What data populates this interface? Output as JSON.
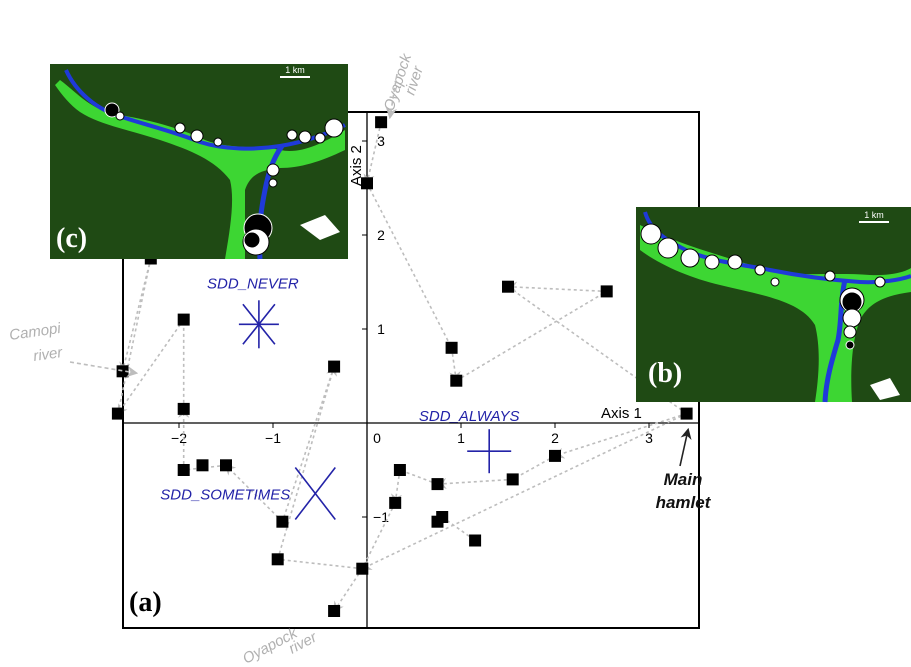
{
  "chart_data": {
    "type": "scatter",
    "xlabel": "Axis 1",
    "ylabel": "Axis 2",
    "xlim": [
      -2.7,
      3.45
    ],
    "ylim": [
      -2.15,
      3.35
    ],
    "x_ticks": [
      -2,
      -1,
      0,
      1,
      2,
      3
    ],
    "y_ticks": [
      -1,
      1,
      2,
      3
    ],
    "grid": false,
    "points": [
      {
        "x": 0.15,
        "y": 3.2
      },
      {
        "x": 0.0,
        "y": 2.55
      },
      {
        "x": 0.9,
        "y": 0.8
      },
      {
        "x": 0.95,
        "y": 0.45
      },
      {
        "x": 1.5,
        "y": 1.45
      },
      {
        "x": 2.55,
        "y": 1.4
      },
      {
        "x": 3.4,
        "y": 0.1
      },
      {
        "x": 2.0,
        "y": -0.35
      },
      {
        "x": 1.55,
        "y": -0.6
      },
      {
        "x": 1.15,
        "y": -1.25
      },
      {
        "x": 0.75,
        "y": -1.05
      },
      {
        "x": 0.8,
        "y": -1.0
      },
      {
        "x": 0.75,
        "y": -0.65
      },
      {
        "x": 0.35,
        "y": -0.5
      },
      {
        "x": 0.3,
        "y": -0.85
      },
      {
        "x": -0.05,
        "y": -1.55
      },
      {
        "x": -0.35,
        "y": -2.0
      },
      {
        "x": -0.95,
        "y": -1.45
      },
      {
        "x": -0.9,
        "y": -1.05
      },
      {
        "x": -0.35,
        "y": 0.6
      },
      {
        "x": -1.5,
        "y": -0.45
      },
      {
        "x": -1.75,
        "y": -0.45
      },
      {
        "x": -1.95,
        "y": -0.5
      },
      {
        "x": -1.95,
        "y": 0.15
      },
      {
        "x": -1.95,
        "y": 1.1
      },
      {
        "x": -2.3,
        "y": 1.75
      },
      {
        "x": -2.6,
        "y": 0.55
      },
      {
        "x": -2.65,
        "y": 0.1
      }
    ],
    "paths": [
      [
        [
          0.15,
          3.2
        ],
        [
          0.0,
          2.55
        ],
        [
          0.9,
          0.8
        ],
        [
          0.95,
          0.45
        ],
        [
          2.55,
          1.4
        ],
        [
          1.5,
          1.45
        ],
        [
          3.4,
          0.1
        ]
      ],
      [
        [
          3.4,
          0.1
        ],
        [
          2.0,
          -0.35
        ],
        [
          1.55,
          -0.6
        ],
        [
          0.75,
          -0.65
        ],
        [
          0.35,
          -0.5
        ],
        [
          0.3,
          -0.85
        ],
        [
          -0.05,
          -1.55
        ],
        [
          -0.35,
          -2.0
        ]
      ],
      [
        [
          0.75,
          -1.05
        ],
        [
          0.8,
          -1.0
        ],
        [
          1.15,
          -1.25
        ]
      ],
      [
        [
          3.4,
          0.1
        ],
        [
          -0.05,
          -1.55
        ],
        [
          -0.95,
          -1.45
        ],
        [
          -0.35,
          0.6
        ],
        [
          -0.9,
          -1.05
        ],
        [
          -1.5,
          -0.45
        ],
        [
          -1.95,
          -0.5
        ],
        [
          -1.95,
          0.15
        ],
        [
          -1.95,
          1.1
        ],
        [
          -2.65,
          0.1
        ],
        [
          -2.3,
          1.75
        ],
        [
          -2.6,
          0.55
        ]
      ]
    ],
    "centroids": [
      {
        "label": "SDD_NEVER",
        "x": -1.15,
        "y": 1.05,
        "glyph": "star"
      },
      {
        "label": "SDD_ALWAYS",
        "x": 1.3,
        "y": -0.3,
        "glyph": "plus"
      },
      {
        "label": "SDD_SOMETIMES",
        "x": -0.55,
        "y": -0.75,
        "glyph": "cross"
      }
    ]
  },
  "annotations": {
    "panel_a": "(a)",
    "panel_b": "(b)",
    "panel_c": "(c)",
    "main_hamlet_line1": "Main",
    "main_hamlet_line2": "hamlet",
    "camopi_line1": "Camopi",
    "camopi_line2": "river",
    "oyapock_top_line1": "Oyapock",
    "oyapock_top_line2": "river",
    "oyapock_bottom_line1": "Oyapock",
    "oyapock_bottom_line2": "river",
    "scale_c": "1 km",
    "scale_b": "1 km"
  },
  "colors": {
    "forest": "#1f4a14",
    "clearing": "#3dd633",
    "river": "#1f3ad9",
    "centroid": "#2323a8",
    "arrow": "#bdbdbd",
    "faint_label": "#b0b0b0"
  }
}
